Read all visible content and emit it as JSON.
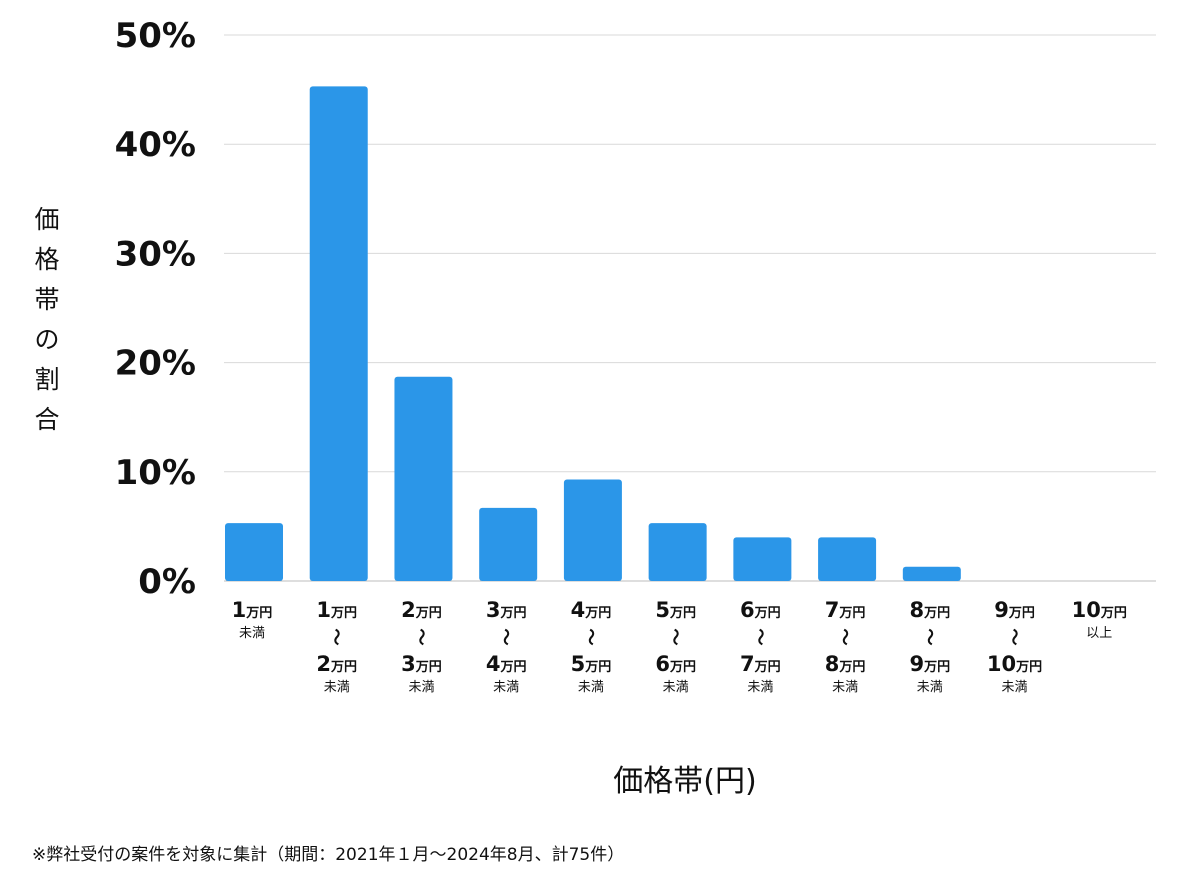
{
  "chart_data": {
    "type": "bar",
    "ylabel": "価格帯の割合",
    "xlabel": "価格帯(円)",
    "ylim": [
      0,
      50
    ],
    "yticks": [
      0,
      10,
      20,
      30,
      40,
      50
    ],
    "ytick_labels": [
      "0%",
      "10%",
      "20%",
      "30%",
      "40%",
      "50%"
    ],
    "grid": true,
    "bar_color": "#2b96e8",
    "categories": [
      "1万円未満",
      "1万円〜2万円未満",
      "2万円〜3万円未満",
      "3万円〜4万円未満",
      "4万円〜5万円未満",
      "5万円〜6万円未満",
      "6万円〜7万円未満",
      "7万円〜8万円未満",
      "8万円〜9万円未満",
      "9万円〜10万円未満",
      "10万円以上"
    ],
    "category_parts": [
      {
        "from": "1",
        "to": null,
        "suffix": "未満"
      },
      {
        "from": "1",
        "to": "2",
        "suffix": "未満"
      },
      {
        "from": "2",
        "to": "3",
        "suffix": "未満"
      },
      {
        "from": "3",
        "to": "4",
        "suffix": "未満"
      },
      {
        "from": "4",
        "to": "5",
        "suffix": "未満"
      },
      {
        "from": "5",
        "to": "6",
        "suffix": "未満"
      },
      {
        "from": "6",
        "to": "7",
        "suffix": "未満"
      },
      {
        "from": "7",
        "to": "8",
        "suffix": "未満"
      },
      {
        "from": "8",
        "to": "9",
        "suffix": "未満"
      },
      {
        "from": "9",
        "to": "10",
        "suffix": "未満"
      },
      {
        "from": "10",
        "to": null,
        "suffix": "以上"
      }
    ],
    "unit": "万円",
    "range_mark": "〜",
    "values": [
      5.3,
      45.3,
      18.7,
      6.7,
      9.3,
      5.3,
      4.0,
      4.0,
      1.3,
      0,
      0
    ]
  },
  "footnote": "※弊社受付の案件を対象に集計（期間：2021年１月〜2024年8月、計75件）"
}
